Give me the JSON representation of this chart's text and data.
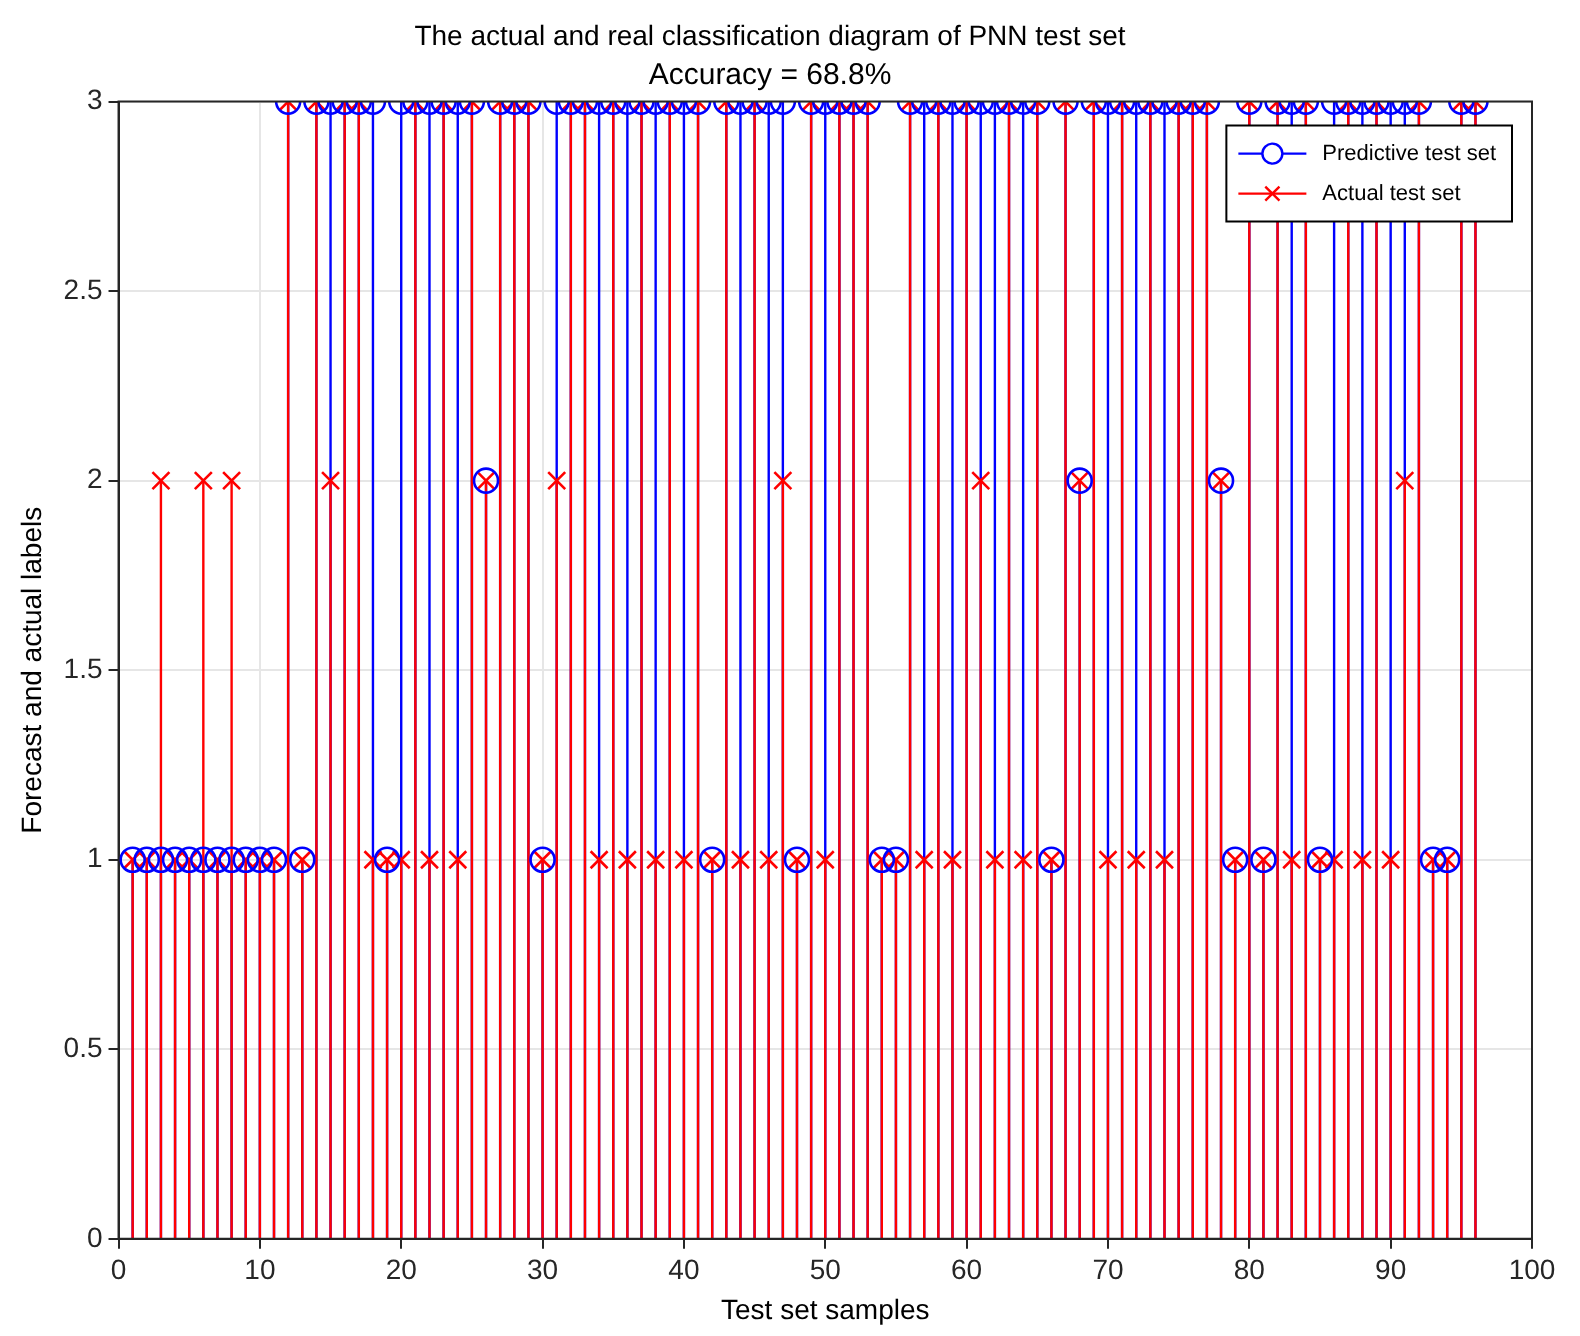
{
  "chart_data": {
    "type": "lollipop",
    "title": "The actual and real classification diagram of PNN test set",
    "subtitle": "Accuracy = 68.8%",
    "xlabel": "Test set samples",
    "ylabel": "Forecast and actual labels",
    "x": [
      1,
      2,
      3,
      4,
      5,
      6,
      7,
      8,
      9,
      10,
      11,
      12,
      13,
      14,
      15,
      16,
      17,
      18,
      19,
      20,
      21,
      22,
      23,
      24,
      25,
      26,
      27,
      28,
      29,
      30,
      31,
      32,
      33,
      34,
      35,
      36,
      37,
      38,
      39,
      40,
      41,
      42,
      43,
      44,
      45,
      46,
      47,
      48,
      49,
      50,
      51,
      52,
      53,
      54,
      55,
      56,
      57,
      58,
      59,
      60,
      61,
      62,
      63,
      64,
      65,
      66,
      67,
      68,
      69,
      70,
      71,
      72,
      73,
      74,
      75,
      76,
      77,
      78,
      79,
      80,
      81,
      82,
      83,
      84,
      85,
      86,
      87,
      88,
      89,
      90,
      91,
      92,
      93,
      94,
      95,
      96
    ],
    "series": [
      {
        "name": "Predictive test set",
        "color": "#0000ff",
        "marker": "circle",
        "values": [
          1,
          1,
          1,
          1,
          1,
          1,
          1,
          1,
          1,
          1,
          1,
          3,
          1,
          3,
          3,
          3,
          3,
          3,
          1,
          3,
          3,
          3,
          3,
          3,
          3,
          2,
          3,
          3,
          3,
          1,
          3,
          3,
          3,
          3,
          3,
          3,
          3,
          3,
          3,
          3,
          3,
          1,
          3,
          3,
          3,
          3,
          3,
          1,
          3,
          3,
          3,
          3,
          3,
          1,
          1,
          3,
          3,
          3,
          3,
          3,
          3,
          3,
          3,
          3,
          3,
          1,
          3,
          2,
          3,
          3,
          3,
          3,
          3,
          3,
          3,
          3,
          3,
          2,
          1,
          3,
          1,
          3,
          3,
          3,
          1,
          3,
          3,
          3,
          3,
          3,
          3,
          3,
          1,
          1,
          3,
          3
        ]
      },
      {
        "name": "Actual test set",
        "color": "#ff0000",
        "marker": "cross",
        "values": [
          1,
          1,
          2,
          1,
          1,
          2,
          1,
          2,
          1,
          1,
          1,
          3,
          1,
          3,
          2,
          3,
          3,
          1,
          1,
          1,
          3,
          1,
          3,
          1,
          3,
          2,
          3,
          3,
          3,
          1,
          2,
          3,
          3,
          1,
          3,
          1,
          3,
          1,
          3,
          1,
          3,
          1,
          3,
          1,
          3,
          1,
          2,
          1,
          3,
          1,
          3,
          3,
          3,
          1,
          1,
          3,
          1,
          3,
          1,
          3,
          2,
          1,
          3,
          1,
          3,
          1,
          3,
          2,
          3,
          1,
          3,
          1,
          3,
          1,
          3,
          3,
          3,
          2,
          1,
          3,
          1,
          3,
          1,
          3,
          1,
          1,
          3,
          1,
          3,
          1,
          2,
          3,
          1,
          1,
          3,
          3
        ]
      }
    ],
    "xlim": [
      0,
      100
    ],
    "xticks": [
      0,
      10,
      20,
      30,
      40,
      50,
      60,
      70,
      80,
      90,
      100
    ],
    "ylim": [
      0,
      3
    ],
    "yticks": [
      0,
      0.5,
      1,
      1.5,
      2,
      2.5,
      3
    ],
    "grid": true,
    "legend": "top right"
  }
}
